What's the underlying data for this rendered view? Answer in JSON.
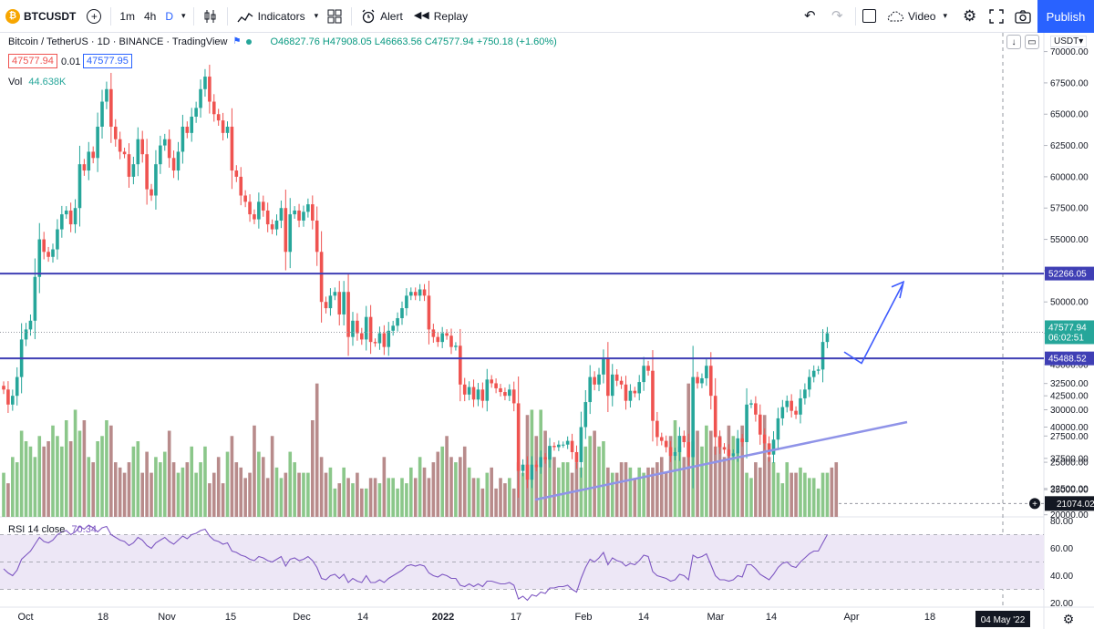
{
  "toolbar": {
    "symbol": "BTCUSDT",
    "intervals": [
      "1m",
      "4h",
      "D"
    ],
    "active_interval": "D",
    "indicators_label": "Indicators",
    "alert_label": "Alert",
    "replay_label": "Replay",
    "video_label": "Video",
    "publish_label": "Publish"
  },
  "legend": {
    "title": "Bitcoin / TetherUS · 1D · BINANCE · TradingView",
    "ohlc": "O46827.76 H47908.05 L46663.56 C47577.94 +750.18 (+1.60%)",
    "bid": "47577.94",
    "spread": "0.01",
    "ask": "47577.95",
    "volume_label": "Vol",
    "volume_value": "44.638K",
    "rsi_label": "RSI 14 close",
    "rsi_value": "70.34"
  },
  "currency": "USDT",
  "colors": {
    "up": "#26a69a",
    "down": "#ef5350",
    "vol_up": "#8bc78a",
    "vol_down": "#b88b8b",
    "level_line": "#3f3fb5",
    "trend_line": "#8f93e8",
    "arrow": "#3d5afe",
    "rsi_line": "#7e57c2",
    "rsi_band": "#ede7f6",
    "accent": "#2962ff"
  },
  "chart_data": [
    {
      "type": "candlestick",
      "title": "Bitcoin / TetherUS · 1D · BINANCE",
      "x_ticks": [
        "Oct",
        "18",
        "Nov",
        "15",
        "Dec",
        "14",
        "2022",
        "17",
        "Feb",
        "14",
        "Mar",
        "14",
        "Apr",
        "18",
        "May"
      ],
      "y_ticks": [
        35000,
        37500,
        40000,
        42500,
        45000,
        47500,
        50000,
        52500,
        55000,
        57500,
        60000,
        62500,
        65000,
        67500,
        70000
      ],
      "y_tick_labels": [
        "35000.00",
        "37500.00",
        "40000.00",
        "42500.00",
        "45000.00",
        "47500.00",
        "50000.00",
        "52500.00",
        "55000.00",
        "57500.00",
        "60000.00",
        "62500.00",
        "65000.00",
        "67500.00",
        "70000.00"
      ],
      "ylim": [
        32900,
        71500
      ],
      "series_closes": [
        43000,
        41800,
        42500,
        44000,
        47000,
        47800,
        48500,
        52000,
        55000,
        54000,
        53600,
        54200,
        55800,
        57000,
        57300,
        56200,
        57500,
        61000,
        60500,
        62000,
        61500,
        64000,
        66000,
        67000,
        64000,
        63000,
        62000,
        61800,
        60000,
        61000,
        63000,
        61800,
        59000,
        58500,
        61000,
        62500,
        63000,
        61500,
        60500,
        62000,
        64000,
        63500,
        64800,
        65500,
        67000,
        68000,
        66000,
        65000,
        64500,
        63500,
        64000,
        60500,
        60000,
        58500,
        58000,
        57000,
        56600,
        58000,
        57300,
        56200,
        55800,
        56500,
        57500,
        54000,
        57000,
        57300,
        56500,
        57200,
        57800,
        56500,
        54000,
        50000,
        49500,
        50500,
        50800,
        49000,
        50800,
        47200,
        48500,
        47500,
        47000,
        48800,
        46800,
        46700,
        47500,
        46400,
        47700,
        48100,
        48700,
        49500,
        50500,
        50800,
        50500,
        51000,
        50500,
        47800,
        47200,
        46800,
        47500,
        47300,
        46400,
        46500,
        43400,
        42600,
        43200,
        42200,
        43000,
        42100,
        43800,
        43500,
        43100,
        42800,
        42500,
        43000,
        41900,
        36500,
        37000,
        35800,
        37000,
        36800,
        37600,
        37400,
        38500,
        38400,
        38600,
        38600,
        38900,
        38000,
        37200,
        40000,
        42000,
        44000,
        43400,
        44200,
        45500,
        42500,
        44200,
        43700,
        43400,
        42100,
        42900,
        42700,
        43600,
        44900,
        44500,
        40500,
        39200,
        38900,
        38400,
        37700,
        38000,
        39300,
        38800,
        37600,
        44000,
        43500,
        43900,
        44900,
        42500,
        39200,
        38400,
        38200,
        37700,
        37900,
        39100,
        38800,
        41800,
        41900,
        41000,
        39400,
        38700,
        37800,
        39000,
        40700,
        41600,
        42100,
        41300,
        41000,
        42300,
        43000,
        44000,
        44500,
        44600,
        46800,
        47500
      ]
    },
    {
      "type": "bar",
      "title": "Volume",
      "y_ticks": [
        20000,
        22500,
        25000,
        27500,
        30000,
        32500
      ],
      "y_tick_labels": [
        "20000.00",
        "22500.00",
        "25000.00",
        "27500.00",
        "30000.00",
        "32500.00"
      ],
      "ylim": [
        19800,
        33600
      ],
      "marker_value": "21074.02",
      "values": [
        24000,
        23000,
        25500,
        25000,
        28000,
        27000,
        26500,
        25500,
        27500,
        26500,
        27000,
        28500,
        27500,
        26500,
        29000,
        27000,
        30000,
        28000,
        29000,
        25500,
        25000,
        27000,
        27500,
        29000,
        28500,
        25000,
        24500,
        24000,
        25000,
        26500,
        27000,
        24000,
        26000,
        24000,
        25500,
        25000,
        26000,
        28000,
        25000,
        24000,
        24500,
        25000,
        26500,
        24000,
        25000,
        26500,
        23000,
        24000,
        25500,
        23000,
        26000,
        27500,
        25000,
        24500,
        23500,
        24000,
        28500,
        26000,
        25500,
        23500,
        27500,
        24500,
        23500,
        24000,
        26000,
        25000,
        24000,
        24000,
        24000,
        29000,
        32500,
        25500,
        24000,
        24500,
        22500,
        23000,
        24500,
        23500,
        23000,
        24000,
        22500,
        22500,
        23500,
        23500,
        23000,
        25500,
        23500,
        23500,
        22500,
        23500,
        23000,
        24500,
        23500,
        25500,
        24500,
        23500,
        25000,
        26000,
        26500,
        27500,
        25500,
        25000,
        25500,
        26500,
        24500,
        23500,
        23500,
        22500,
        24000,
        24500,
        22500,
        23500,
        23000,
        23500,
        22500,
        25000,
        24000,
        29500,
        30000,
        27500,
        30000,
        28000,
        26500,
        25500,
        24500,
        25000,
        25000,
        24000,
        25000,
        24500,
        26500,
        27500,
        28000,
        26500,
        27000,
        24500,
        24000,
        24000,
        25000,
        25000,
        24500,
        23500,
        24500,
        24000,
        24500,
        24500,
        25000,
        25500,
        24000,
        27500,
        29000,
        26500,
        25500,
        32500,
        27000,
        28000,
        26500,
        28500,
        28000,
        26500,
        27500,
        25500,
        28500,
        27500,
        26000,
        28500,
        24000,
        23500,
        25000,
        24500,
        29500,
        25500,
        25000,
        24000,
        23000,
        25000,
        24000,
        24000,
        24500,
        24000,
        23500,
        23500,
        22500,
        24000,
        24000,
        24500,
        25000
      ]
    },
    {
      "type": "line",
      "title": "RSI 14 close",
      "y_ticks": [
        20,
        40,
        60,
        80
      ],
      "y_tick_labels": [
        "20.00",
        "40.00",
        "60.00",
        "80.00"
      ],
      "ylim": [
        17,
        83
      ],
      "band": [
        30,
        70
      ],
      "values": [
        45,
        42,
        40,
        44,
        52,
        55,
        58,
        63,
        68,
        65,
        64,
        66,
        70,
        72,
        73,
        70,
        72,
        76,
        74,
        77,
        75,
        72,
        75,
        76,
        70,
        68,
        66,
        65,
        62,
        64,
        68,
        66,
        62,
        60,
        64,
        66,
        68,
        65,
        63,
        66,
        69,
        67,
        70,
        71,
        73,
        74,
        69,
        66,
        65,
        63,
        64,
        58,
        57,
        55,
        54,
        52,
        51,
        54,
        53,
        51,
        50,
        52,
        54,
        47,
        52,
        53,
        51,
        52,
        54,
        51,
        46,
        38,
        37,
        40,
        41,
        38,
        41,
        35,
        38,
        36,
        35,
        40,
        35,
        35,
        37,
        35,
        38,
        40,
        42,
        44,
        47,
        48,
        47,
        48,
        47,
        42,
        40,
        39,
        41,
        40,
        38,
        38,
        33,
        32,
        34,
        32,
        34,
        32,
        36,
        36,
        35,
        34,
        34,
        35,
        33,
        23,
        25,
        22,
        26,
        25,
        28,
        27,
        31,
        31,
        32,
        32,
        33,
        30,
        28,
        38,
        46,
        52,
        50,
        53,
        57,
        48,
        53,
        51,
        50,
        47,
        49,
        48,
        51,
        55,
        54,
        43,
        40,
        39,
        38,
        36,
        37,
        41,
        40,
        37,
        55,
        53,
        54,
        56,
        48,
        40,
        37,
        37,
        36,
        37,
        40,
        39,
        48,
        48,
        45,
        41,
        39,
        37,
        41,
        46,
        49,
        50,
        47,
        46,
        50,
        53,
        56,
        58,
        58,
        64,
        70
      ]
    }
  ],
  "annotations": {
    "resistance_label": "52266.05",
    "support_label": "45488.52",
    "current_price": "47577.94",
    "countdown": "06:02:51",
    "date_marker": "04 May '22"
  }
}
